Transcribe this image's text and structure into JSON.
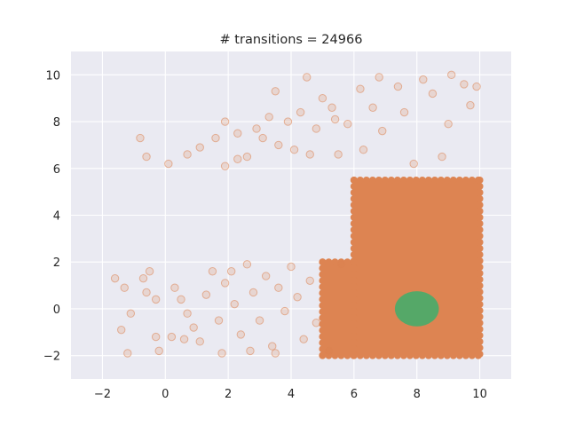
{
  "chart_data": {
    "type": "scatter",
    "title": "# transitions = 24966",
    "xlabel": "",
    "ylabel": "",
    "xlim": [
      -3,
      11
    ],
    "ylim": [
      -3,
      11
    ],
    "xticks": [
      -2,
      0,
      2,
      4,
      6,
      8,
      10
    ],
    "yticks": [
      -2,
      0,
      2,
      4,
      6,
      8,
      10
    ],
    "xtick_labels": [
      "−2",
      "0",
      "2",
      "4",
      "6",
      "8",
      "10"
    ],
    "ytick_labels": [
      "−2",
      "0",
      "2",
      "4",
      "6",
      "8",
      "10"
    ],
    "grid": true,
    "background": "#eaeaf2",
    "series": [
      {
        "color": "#dd8452",
        "alpha": 0.2,
        "count": 24966,
        "dense_regions": [
          {
            "x": [
              6,
              10
            ],
            "y": [
              -2,
              5.5
            ]
          },
          {
            "x": [
              5,
              6
            ],
            "y": [
              -2,
              2
            ]
          }
        ],
        "points": [
          [
            -1.6,
            1.3
          ],
          [
            -1.3,
            0.9
          ],
          [
            -1.1,
            -0.2
          ],
          [
            -1.4,
            -0.9
          ],
          [
            -1.2,
            -1.9
          ],
          [
            -0.6,
            0.7
          ],
          [
            -0.7,
            1.3
          ],
          [
            -0.5,
            1.6
          ],
          [
            -0.3,
            -1.2
          ],
          [
            -0.2,
            -1.8
          ],
          [
            -0.3,
            0.4
          ],
          [
            -0.8,
            7.3
          ],
          [
            -0.6,
            6.5
          ],
          [
            0.1,
            6.2
          ],
          [
            0.7,
            6.6
          ],
          [
            1.1,
            6.9
          ],
          [
            1.6,
            7.3
          ],
          [
            1.9,
            8.0
          ],
          [
            2.3,
            7.5
          ],
          [
            1.9,
            6.1
          ],
          [
            2.3,
            6.4
          ],
          [
            2.6,
            6.5
          ],
          [
            2.9,
            7.7
          ],
          [
            3.1,
            7.3
          ],
          [
            3.3,
            8.2
          ],
          [
            3.5,
            9.3
          ],
          [
            3.6,
            7.0
          ],
          [
            3.9,
            8.0
          ],
          [
            4.1,
            6.8
          ],
          [
            4.5,
            9.9
          ],
          [
            4.3,
            8.4
          ],
          [
            4.6,
            6.6
          ],
          [
            4.8,
            7.7
          ],
          [
            5.0,
            9.0
          ],
          [
            5.3,
            8.6
          ],
          [
            5.5,
            6.6
          ],
          [
            5.8,
            7.9
          ],
          [
            6.2,
            9.4
          ],
          [
            5.4,
            8.1
          ],
          [
            6.8,
            9.9
          ],
          [
            7.4,
            9.5
          ],
          [
            8.2,
            9.8
          ],
          [
            9.5,
            9.6
          ],
          [
            9.9,
            9.5
          ],
          [
            9.1,
            10.0
          ],
          [
            0.3,
            0.9
          ],
          [
            0.5,
            0.4
          ],
          [
            0.7,
            -0.2
          ],
          [
            0.9,
            -0.8
          ],
          [
            1.1,
            -1.4
          ],
          [
            1.3,
            0.6
          ],
          [
            1.5,
            1.6
          ],
          [
            1.7,
            -0.5
          ],
          [
            1.9,
            1.1
          ],
          [
            2.1,
            1.6
          ],
          [
            2.2,
            0.2
          ],
          [
            2.4,
            -1.1
          ],
          [
            2.6,
            1.9
          ],
          [
            2.8,
            0.7
          ],
          [
            3.0,
            -0.5
          ],
          [
            3.2,
            1.4
          ],
          [
            3.4,
            -1.6
          ],
          [
            3.6,
            0.9
          ],
          [
            3.8,
            -0.1
          ],
          [
            4.0,
            1.8
          ],
          [
            4.2,
            0.5
          ],
          [
            4.4,
            -1.3
          ],
          [
            4.6,
            1.2
          ],
          [
            4.8,
            -0.6
          ],
          [
            0.2,
            -1.2
          ],
          [
            0.6,
            -1.3
          ],
          [
            1.8,
            -1.9
          ],
          [
            2.7,
            -1.8
          ],
          [
            3.5,
            -1.9
          ],
          [
            5.2,
            -1.8
          ],
          [
            5.6,
            1.9
          ],
          [
            6.3,
            6.8
          ],
          [
            6.9,
            7.6
          ],
          [
            7.6,
            8.4
          ],
          [
            8.5,
            9.2
          ],
          [
            9.0,
            7.9
          ],
          [
            9.7,
            8.7
          ],
          [
            6.6,
            8.6
          ],
          [
            7.9,
            6.2
          ],
          [
            8.8,
            6.5
          ]
        ]
      },
      {
        "color": "#55a868",
        "alpha": 1.0,
        "cluster": {
          "center": [
            8.0,
            0.0
          ],
          "radius_x": 0.7,
          "radius_y": 0.75
        }
      }
    ]
  }
}
